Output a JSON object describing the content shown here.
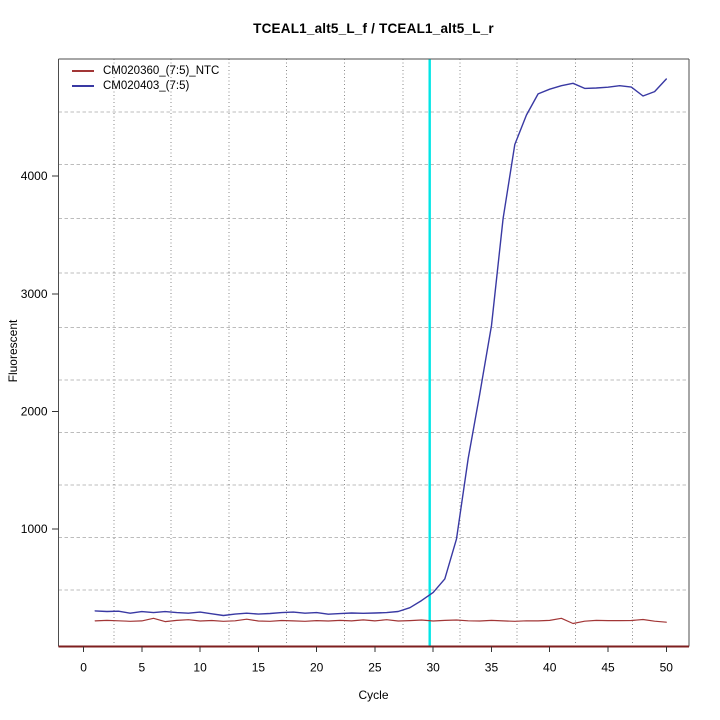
{
  "chart_data": {
    "type": "line",
    "title": "TCEAL1_alt5_L_f / TCEAL1_alt5_L_r",
    "xlabel": "Cycle",
    "ylabel": "Fluorescent",
    "xlim": [
      -2.15,
      51.95
    ],
    "ylim": [
      0,
      4997
    ],
    "x_ticks": [
      0,
      5,
      10,
      15,
      20,
      25,
      30,
      35,
      40,
      45,
      50
    ],
    "y_ticks": [
      1000,
      2000,
      3000,
      4000
    ],
    "grid": {
      "x_values": [
        2.6,
        7.5,
        12.5,
        17.4,
        22.4,
        27.4,
        32.3,
        37.2,
        42.2,
        47.1
      ],
      "y_values": [
        480,
        928,
        1374,
        1820,
        2267,
        2715,
        3176,
        3640,
        4098,
        4545
      ]
    },
    "threshold_line": {
      "x": 29.7,
      "color": "#00E6E6"
    },
    "baseline_axis_color": "#7E1F1F",
    "x": [
      1,
      2,
      3,
      4,
      5,
      6,
      7,
      8,
      9,
      10,
      11,
      12,
      13,
      14,
      15,
      16,
      17,
      18,
      19,
      20,
      21,
      22,
      23,
      24,
      25,
      26,
      27,
      28,
      29,
      30,
      31,
      32,
      33,
      34,
      35,
      36,
      37,
      38,
      39,
      40,
      41,
      42,
      43,
      44,
      45,
      46,
      47,
      48,
      49,
      50
    ],
    "series": [
      {
        "name": "CM020360_(7:5)_NTC",
        "color": "#A23636",
        "values": [
          218,
          222,
          219,
          214,
          218,
          240,
          212,
          222,
          228,
          217,
          221,
          214,
          219,
          232,
          217,
          214,
          221,
          218,
          214,
          220,
          217,
          222,
          218,
          226,
          218,
          228,
          217,
          220,
          225,
          217,
          222,
          225,
          219,
          217,
          222,
          218,
          214,
          219,
          218,
          222,
          240,
          196,
          215,
          222,
          220,
          220,
          221,
          230,
          215,
          207
        ]
      },
      {
        "name": "CM020403_(7:5)",
        "color": "#3939A3",
        "values": [
          303,
          298,
          300,
          283,
          297,
          288,
          297,
          288,
          283,
          293,
          278,
          264,
          276,
          283,
          276,
          281,
          288,
          293,
          283,
          288,
          275,
          280,
          285,
          282,
          285,
          288,
          298,
          330,
          390,
          460,
          575,
          915,
          1600,
          2150,
          2730,
          3640,
          4270,
          4520,
          4700,
          4740,
          4770,
          4790,
          4747,
          4750,
          4757,
          4770,
          4758,
          4682,
          4720,
          4827
        ]
      }
    ],
    "legend_position": "top-left",
    "grid_on": true
  },
  "colors": {
    "box_border": "#4d4d4d",
    "v_grid": "#8a8a8a",
    "h_grid": "#bcbcbc",
    "tick": "#333333",
    "text": "#000000"
  }
}
